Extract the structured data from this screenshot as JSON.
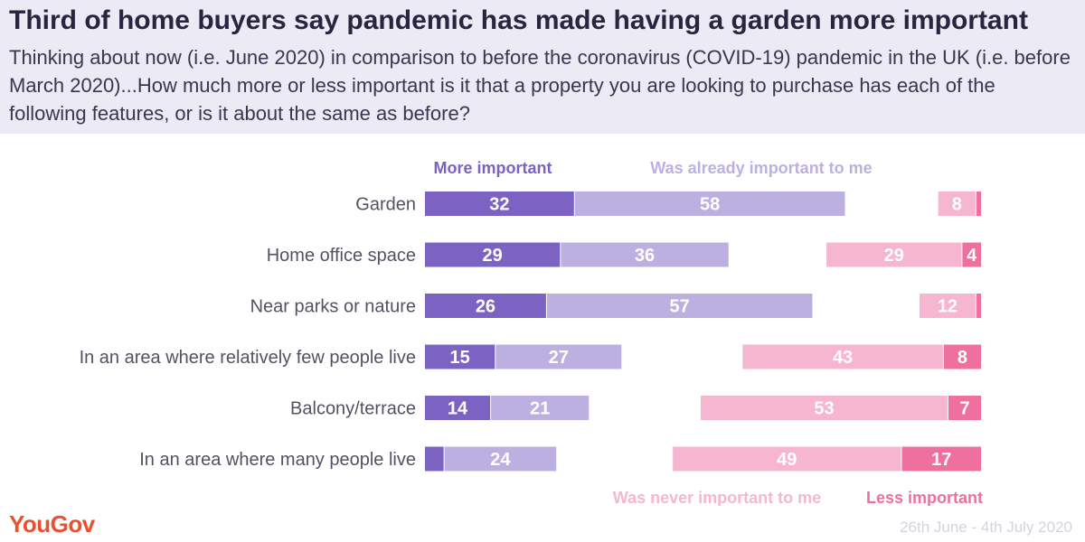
{
  "header": {
    "title": "Third of home buyers say pandemic has made having a garden more important",
    "subtitle": "Thinking about now (i.e. June 2020) in comparison to before the coronavirus (COVID-19) pandemic in the UK (i.e. before March 2020)...How much more or less important is it that a property you are looking to purchase has each of the following features, or is it about the same as before?"
  },
  "footer": {
    "logo": "YouGov",
    "date_range": "26th June - 4th July 2020"
  },
  "colors": {
    "more_important": "#7b62c3",
    "already_important": "#bcb0e0",
    "never_important": "#f7b6cf",
    "less_important": "#ef6f9d"
  },
  "chart_data": {
    "type": "bar",
    "orientation": "horizontal",
    "stacked": "diverging",
    "categories": [
      "Garden",
      "Home office space",
      "Near parks or nature",
      "In an area where relatively few people live",
      "Balcony/terrace",
      "In an area where many people live"
    ],
    "series": [
      {
        "name": "More important",
        "side": "left",
        "values": [
          32,
          29,
          26,
          15,
          14,
          4
        ]
      },
      {
        "name": "Was already important to me",
        "side": "left",
        "values": [
          58,
          36,
          57,
          27,
          21,
          24
        ]
      },
      {
        "name": "Was never important to me",
        "side": "right",
        "values": [
          8,
          29,
          12,
          43,
          53,
          49
        ]
      },
      {
        "name": "Less important",
        "side": "right",
        "values": [
          1,
          4,
          1,
          8,
          7,
          17
        ]
      }
    ],
    "legend_top": [
      "More important",
      "Was already important to me"
    ],
    "legend_bottom": [
      "Was never important to me",
      "Less important"
    ]
  }
}
